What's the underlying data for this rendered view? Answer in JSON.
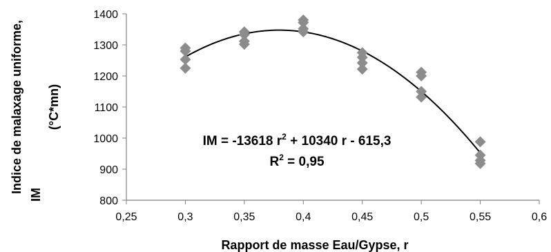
{
  "chart_data": {
    "type": "scatter",
    "xlabel": "Rapport  de masse  Eau/Gypse,  r",
    "ylabel_line1": "Indice de malaxage uniforme,",
    "ylabel_line2": "IM",
    "ylabel_unit": "(°C*mn)",
    "xlim": [
      0.25,
      0.6
    ],
    "ylim": [
      800,
      1400
    ],
    "x_ticks": [
      "0,25",
      "0,3",
      "0,35",
      "0,4",
      "0,45",
      "0,5",
      "0,55",
      "0,6"
    ],
    "y_ticks": [
      "800",
      "900",
      "1000",
      "1100",
      "1200",
      "1300",
      "1400"
    ],
    "grid": false,
    "marker_color": "#8c8c8c",
    "series": [
      {
        "points": [
          {
            "x": 0.3,
            "y": 1290
          },
          {
            "x": 0.3,
            "y": 1280
          },
          {
            "x": 0.3,
            "y": 1253
          },
          {
            "x": 0.3,
            "y": 1225
          },
          {
            "x": 0.35,
            "y": 1342
          },
          {
            "x": 0.35,
            "y": 1333
          },
          {
            "x": 0.35,
            "y": 1312
          },
          {
            "x": 0.35,
            "y": 1302
          },
          {
            "x": 0.4,
            "y": 1380
          },
          {
            "x": 0.4,
            "y": 1372
          },
          {
            "x": 0.4,
            "y": 1352
          },
          {
            "x": 0.4,
            "y": 1342
          },
          {
            "x": 0.45,
            "y": 1275
          },
          {
            "x": 0.45,
            "y": 1260
          },
          {
            "x": 0.45,
            "y": 1242
          },
          {
            "x": 0.45,
            "y": 1222
          },
          {
            "x": 0.5,
            "y": 1212
          },
          {
            "x": 0.5,
            "y": 1200
          },
          {
            "x": 0.5,
            "y": 1150
          },
          {
            "x": 0.5,
            "y": 1132
          },
          {
            "x": 0.55,
            "y": 988
          },
          {
            "x": 0.55,
            "y": 945
          },
          {
            "x": 0.55,
            "y": 928
          },
          {
            "x": 0.55,
            "y": 918
          }
        ]
      }
    ],
    "trendline": {
      "type": "polynomial-2",
      "coefficients": {
        "a": -13618,
        "b": 10340,
        "c": -615.3
      },
      "x_range": [
        0.3,
        0.55
      ],
      "color": "#000000"
    },
    "annotations": {
      "equation_main": "IM = -13618 r",
      "equation_sup": "2",
      "equation_rest": " + 10340 r - 615,3",
      "r2_main": "R",
      "r2_sup": "2",
      "r2_rest": " = 0,95"
    }
  }
}
